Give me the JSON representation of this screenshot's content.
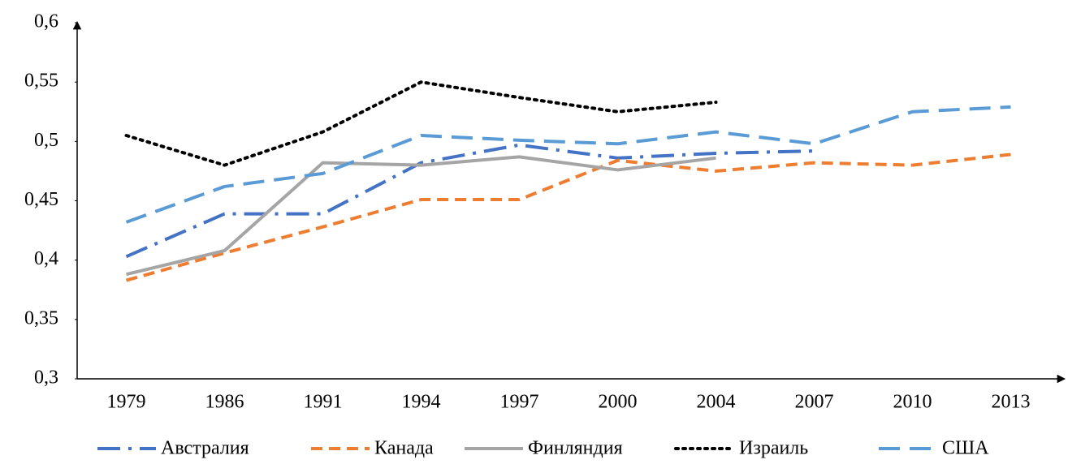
{
  "chart_data": {
    "type": "line",
    "categories": [
      "1979",
      "1986",
      "1991",
      "1994",
      "1997",
      "2000",
      "2004",
      "2007",
      "2010",
      "2013"
    ],
    "ylim": [
      0.3,
      0.6
    ],
    "yticks": [
      {
        "value": 0.3,
        "label": "0,3"
      },
      {
        "value": 0.35,
        "label": "0,35"
      },
      {
        "value": 0.4,
        "label": "0,4"
      },
      {
        "value": 0.45,
        "label": "0,45"
      },
      {
        "value": 0.5,
        "label": "0,5"
      },
      {
        "value": 0.55,
        "label": "0,55"
      },
      {
        "value": 0.6,
        "label": "0,6"
      }
    ],
    "grid": false,
    "legend": "bottom",
    "series": [
      {
        "name": "Австралия",
        "color": "#4472c4",
        "style": "dashdot",
        "values": [
          0.403,
          0.439,
          0.439,
          0.482,
          0.497,
          0.486,
          0.49,
          0.492,
          null,
          null
        ]
      },
      {
        "name": "Канада",
        "color": "#ed7d31",
        "style": "dash",
        "values": [
          0.383,
          0.406,
          0.428,
          0.451,
          0.451,
          0.484,
          0.475,
          0.482,
          0.48,
          0.489
        ]
      },
      {
        "name": "Финляндия",
        "color": "#a5a5a5",
        "style": "solid",
        "values": [
          0.388,
          0.408,
          0.482,
          0.48,
          0.487,
          0.476,
          0.486,
          null,
          null,
          null
        ]
      },
      {
        "name": "Израиль",
        "color": "#000000",
        "style": "dot",
        "values": [
          0.505,
          0.48,
          0.508,
          0.55,
          0.537,
          0.525,
          0.533,
          null,
          null,
          null
        ]
      },
      {
        "name": "США",
        "color": "#5b9bd5",
        "style": "longdash",
        "values": [
          0.432,
          0.462,
          0.473,
          0.505,
          0.501,
          0.498,
          0.508,
          0.498,
          0.525,
          0.529
        ]
      }
    ]
  }
}
